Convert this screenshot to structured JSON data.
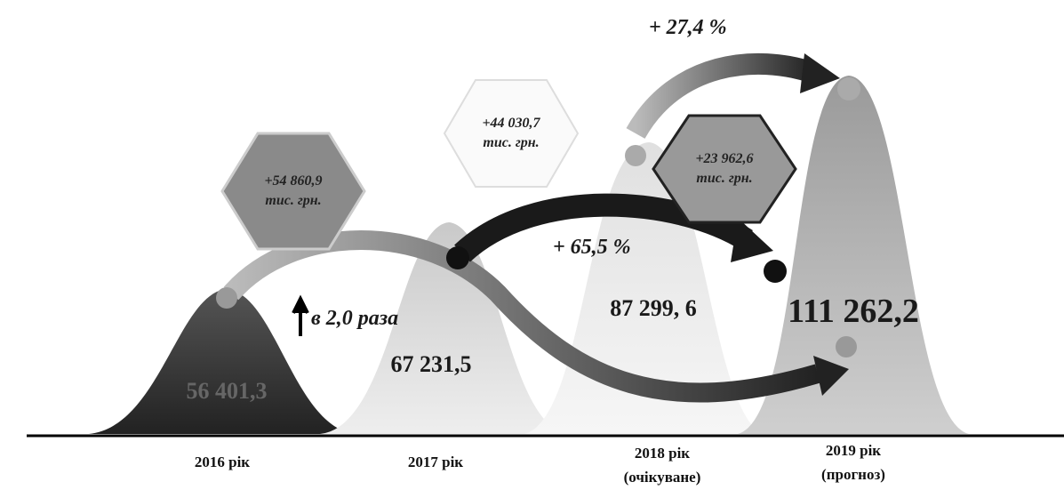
{
  "years": [
    {
      "label": "2016 рік",
      "value": "56 401,3"
    },
    {
      "label": "2017 рік",
      "value": "67 231,5"
    },
    {
      "label": "2018 рік",
      "note": "(очікуване)",
      "value": "87 299, 6"
    },
    {
      "label": "2019 рік",
      "note": "(прогноз)",
      "value": "111 262,2"
    }
  ],
  "increments": [
    {
      "amount": "+54 860,9",
      "unit": "тис. грн."
    },
    {
      "amount": "+44 030,7",
      "unit": "тис. грн."
    },
    {
      "amount": "+23 962,6",
      "unit": "тис. грн."
    }
  ],
  "growth": {
    "ratio": "в 2,0 раза",
    "percent_2017_2019": "+ 65,5 %",
    "percent_2018_2019": "+ 27,4 %"
  }
}
